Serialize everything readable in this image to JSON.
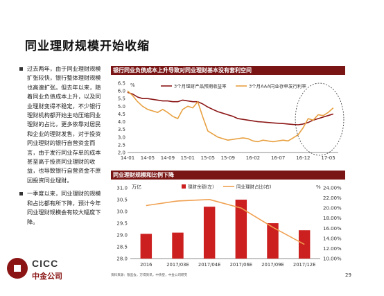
{
  "slide": {
    "title": "同业理财规模开始收缩",
    "bullets": [
      "过去两年，由于同业理财规模扩张较快，银行整体理财规模也高速扩张。但去年以来，随着同业负债成本上升，以及同业理财变得不稳定，不少银行理财机构都开始主动压缩同业理财的占比，更多依靠对居民和企业的理财发售，对于投资同业理财的银行自营资金而言，由于发行同业存单的成本甚至高于投资同业理财的收益，也导致银行自营资金不原因投资同业理财。",
      "一季度以来，同业理财的规模和占比都有所下降，预计今年同业理财规模会有较大幅度下降。"
    ],
    "source": "资料来源：银监会，万得资讯，中债登，中金公司研究",
    "page_number": "29",
    "logo": {
      "en": "CICC",
      "cn": "中金公司"
    }
  },
  "chart_data": [
    {
      "type": "line",
      "title": "银行同业负债成本上升导致对同业理财基本没有套利空间",
      "unit": "%",
      "x_ticks": [
        "14-01",
        "14-05",
        "14-09",
        "15-01",
        "15-05",
        "15-09",
        "16-02",
        "16-07",
        "16-12",
        "17-05"
      ],
      "ylim": [
        2.0,
        6.5
      ],
      "y_ticks": [
        "6.5",
        "6.0",
        "5.5",
        "5.0",
        "4.5",
        "4.0",
        "3.5",
        "3.0",
        "2.5",
        "2.0"
      ],
      "series": [
        {
          "name": "3个月理财产品预期收益率",
          "color": "#8b1515",
          "x": [
            "2014-01",
            "2014-02",
            "2014-03",
            "2014-04",
            "2014-05",
            "2014-06",
            "2014-07",
            "2014-08",
            "2014-09",
            "2014-10",
            "2014-11",
            "2014-12",
            "2015-01",
            "2015-02",
            "2015-03",
            "2015-04",
            "2015-05",
            "2015-06",
            "2015-07",
            "2015-08",
            "2015-09",
            "2015-10",
            "2015-11",
            "2015-12",
            "2016-01",
            "2016-02",
            "2016-03",
            "2016-04",
            "2016-05",
            "2016-06",
            "2016-07",
            "2016-08",
            "2016-09",
            "2016-10",
            "2016-11",
            "2016-12",
            "2017-01",
            "2017-02",
            "2017-03",
            "2017-04",
            "2017-05",
            "2017-06"
          ],
          "values": [
            5.9,
            5.8,
            5.6,
            5.5,
            5.5,
            5.45,
            5.4,
            5.35,
            5.35,
            5.3,
            5.3,
            5.4,
            5.35,
            5.3,
            5.3,
            5.15,
            4.95,
            4.8,
            4.65,
            4.55,
            4.45,
            4.35,
            4.2,
            4.15,
            4.1,
            4.05,
            4.0,
            3.98,
            3.95,
            3.92,
            3.9,
            3.88,
            3.85,
            3.82,
            3.8,
            3.85,
            3.95,
            4.1,
            4.2,
            4.3,
            4.4,
            4.5
          ]
        },
        {
          "name": "3个月AAA同业存单发行利率",
          "color": "#e8a040",
          "x": [
            "2014-01",
            "2014-02",
            "2014-03",
            "2014-04",
            "2014-05",
            "2014-06",
            "2014-07",
            "2014-08",
            "2014-09",
            "2014-10",
            "2014-11",
            "2014-12",
            "2015-01",
            "2015-02",
            "2015-03",
            "2015-04",
            "2015-05",
            "2015-06",
            "2015-07",
            "2015-08",
            "2015-09",
            "2015-10",
            "2015-11",
            "2015-12",
            "2016-01",
            "2016-02",
            "2016-03",
            "2016-04",
            "2016-05",
            "2016-06",
            "2016-07",
            "2016-08",
            "2016-09",
            "2016-10",
            "2016-11",
            "2016-12",
            "2017-01",
            "2017-02",
            "2017-03",
            "2017-04",
            "2017-05",
            "2017-06"
          ],
          "values": [
            6.0,
            5.7,
            5.3,
            5.0,
            4.8,
            4.7,
            4.6,
            4.8,
            4.6,
            4.35,
            4.2,
            4.8,
            5.0,
            4.9,
            5.3,
            4.3,
            3.4,
            3.2,
            3.0,
            2.9,
            2.8,
            2.85,
            2.9,
            2.95,
            2.9,
            2.75,
            2.7,
            2.8,
            2.75,
            2.7,
            2.75,
            2.8,
            2.75,
            2.95,
            3.15,
            3.6,
            4.2,
            4.1,
            4.45,
            4.4,
            4.6,
            4.9
          ]
        }
      ],
      "annotation": "dashed ellipse highlighting 16-12 to 17-05"
    },
    {
      "type": "bar",
      "title": "同业理财规模和比例下降",
      "categories": [
        "2016",
        "2017/03E",
        "2017/04E",
        "2017/06E",
        "2017/09E",
        "2017/12E"
      ],
      "left_unit": "万亿",
      "right_unit": "%",
      "ylim": [
        28.0,
        31.0
      ],
      "y_ticks": [
        "31.0",
        "30.5",
        "30.0",
        "29.5",
        "29.0",
        "28.5",
        "28.0"
      ],
      "y2lim": [
        10.0,
        24.0
      ],
      "y2_ticks": [
        "24.00%",
        "22.00%",
        "20.00%",
        "18.00%",
        "16.00%",
        "14.00%",
        "12.00%",
        "10.00%"
      ],
      "series": [
        {
          "name": "理财余额(左)",
          "type": "bar",
          "color": "#cc1f1f",
          "values": [
            29.05,
            29.1,
            30.2,
            30.5,
            29.5,
            29.2
          ]
        },
        {
          "name": "同业理财占比(右)",
          "type": "line",
          "color": "#f0a050",
          "values": [
            20.5,
            21.4,
            21.7,
            20.0,
            16.2,
            12.8
          ]
        }
      ]
    }
  ]
}
